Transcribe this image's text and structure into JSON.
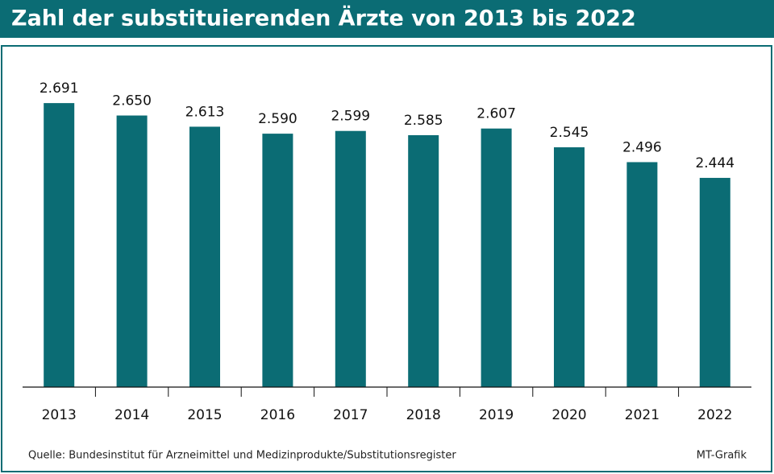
{
  "chart_data": {
    "type": "bar",
    "title": "Zahl der substituierenden Ärzte von 2013 bis 2022",
    "categories": [
      "2013",
      "2014",
      "2015",
      "2016",
      "2017",
      "2018",
      "2019",
      "2020",
      "2021",
      "2022"
    ],
    "values": [
      2691,
      2650,
      2613,
      2590,
      2599,
      2585,
      2607,
      2545,
      2496,
      2444
    ],
    "value_labels": [
      "2.691",
      "2.650",
      "2.613",
      "2.590",
      "2.599",
      "2.585",
      "2.607",
      "2.545",
      "2.496",
      "2.444"
    ],
    "color": "#0b6c74",
    "ylim": [
      1753,
      2880
    ],
    "source": "Quelle: Bundesinstitut für Arzneimittel und Medizinprodukte/Substitutionsregister",
    "credit": "MT-Grafik"
  }
}
